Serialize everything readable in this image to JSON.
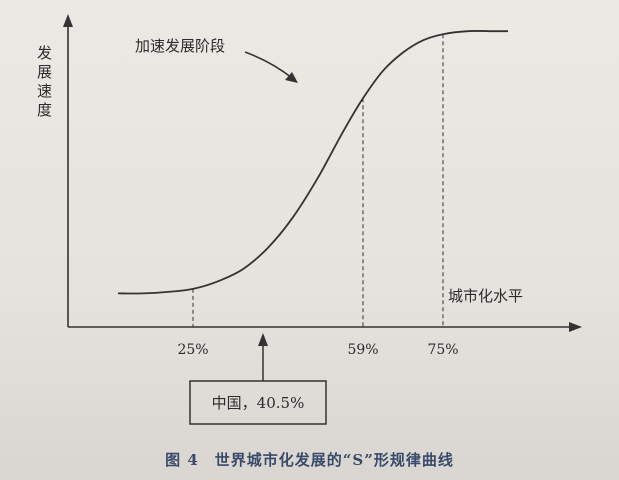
{
  "chart_data": {
    "type": "line",
    "title": "",
    "ylabel": "发展速度",
    "xlabel": "城市化水平",
    "xlim": [
      0,
      100
    ],
    "ylim": [
      0,
      100
    ],
    "x_unit_suffix": "%",
    "series": [
      {
        "values_x": [
          10,
          15,
          20,
          25,
          30,
          35,
          40,
          45,
          50,
          55,
          59,
          63,
          67,
          71,
          75,
          80,
          85,
          88
        ],
        "values_y": [
          11,
          11,
          11.5,
          12.5,
          15,
          19,
          26,
          36,
          49,
          64,
          75,
          84,
          90,
          94,
          96,
          97,
          97,
          97
        ]
      }
    ],
    "markers": [
      {
        "x": 25,
        "label": "25%"
      },
      {
        "x": 59,
        "label": "59%"
      },
      {
        "x": 75,
        "label": "75%"
      }
    ],
    "annotations": [
      {
        "text": "加速发展阶段",
        "x": 43,
        "y": 93
      },
      {
        "text": "中国，40.5%",
        "x": 40.5,
        "y": 0
      }
    ]
  },
  "caption": "图 4　世界城市化发展的“S”形规律曲线"
}
